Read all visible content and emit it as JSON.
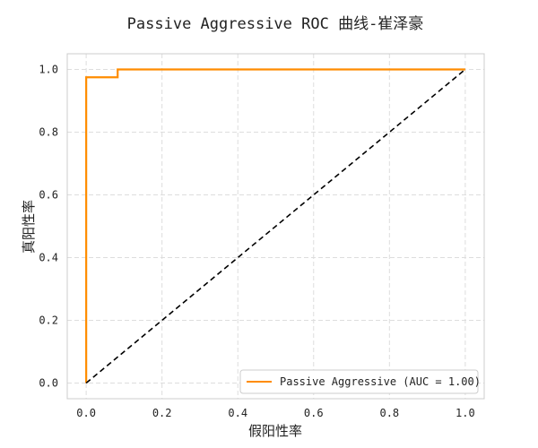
{
  "chart_data": {
    "type": "line",
    "title": "Passive Aggressive ROC 曲线-崔泽豪",
    "xlabel": "假阳性率",
    "ylabel": "真阳性率",
    "xlim": [
      -0.05,
      1.05
    ],
    "ylim": [
      -0.05,
      1.05
    ],
    "xticks": [
      "0.0",
      "0.2",
      "0.4",
      "0.6",
      "0.8",
      "1.0"
    ],
    "yticks": [
      "0.0",
      "0.2",
      "0.4",
      "0.6",
      "0.8",
      "1.0"
    ],
    "grid": true,
    "legend_position": "lower-right",
    "series": [
      {
        "name": "Passive Aggressive (AUC = 1.00)",
        "color": "#ff8c00",
        "style": "solid",
        "x": [
          0.0,
          0.0,
          0.083,
          0.083,
          1.0
        ],
        "y": [
          0.0,
          0.975,
          0.975,
          1.0,
          1.0
        ]
      },
      {
        "color": "#000000",
        "style": "dashed",
        "x": [
          0.0,
          1.0
        ],
        "y": [
          0.0,
          1.0
        ]
      }
    ]
  }
}
